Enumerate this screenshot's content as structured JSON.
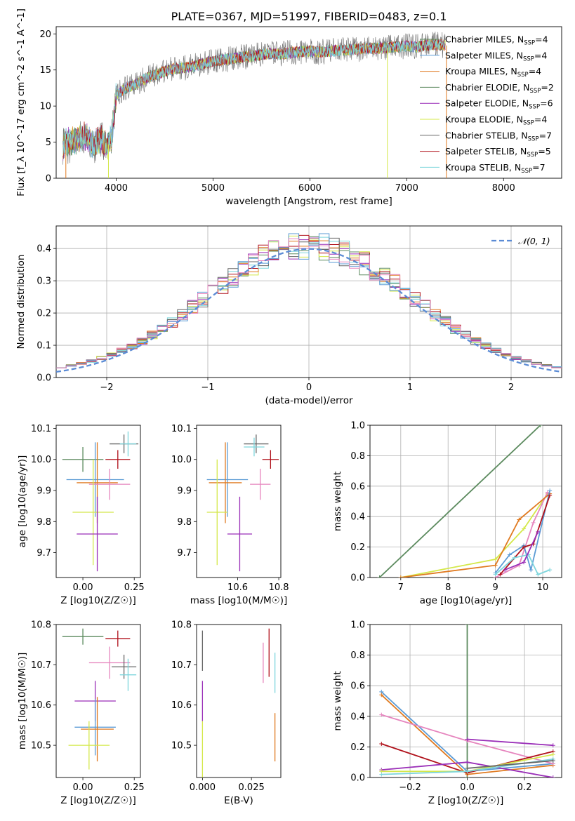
{
  "figure_title": "PLATE=0367, MJD=51997, FIBERID=0483, z=0.1",
  "model_colors": [
    "#5b8a5e",
    "#9a2fb8",
    "#d4e84a",
    "#666666",
    "#b0101a",
    "#7dd5dc",
    "#e0e020",
    "#5b9bd5",
    "#e07a20",
    "#e685be"
  ],
  "chart_data": [
    {
      "id": "spectrum",
      "type": "line",
      "title": "PLATE=0367, MJD=51997, FIBERID=0483, z=0.1",
      "xlabel": "wavelength [Angstrom, rest frame]",
      "ylabel": "Flux [f_λ 10^-17 erg cm^-2 s^-1 A^-1]",
      "xlim": [
        3380,
        8600
      ],
      "ylim": [
        0,
        21
      ],
      "xticks": [
        4000,
        5000,
        6000,
        7000,
        8000
      ],
      "yticks": [
        0,
        5,
        10,
        15,
        20
      ],
      "grid": false,
      "legend_position": "top-right",
      "x": [
        3450,
        3500,
        3550,
        3600,
        3650,
        3700,
        3750,
        3800,
        3850,
        3900,
        3950,
        4000,
        4100,
        4200,
        4300,
        4400,
        4500,
        4600,
        4700,
        4800,
        4900,
        5000,
        5100,
        5200,
        5300,
        5400,
        5500,
        5600,
        5700,
        5800,
        5900,
        6000,
        6100,
        6200,
        6300,
        6400,
        6500,
        6600,
        6700,
        6800,
        6900,
        7000,
        7100,
        7200,
        7300,
        7400
      ],
      "y_model": [
        4.5,
        5.0,
        5.2,
        5.5,
        5.6,
        5.8,
        4.5,
        5.0,
        5.3,
        4.2,
        5.4,
        11.5,
        12.5,
        13.0,
        13.8,
        14.3,
        14.8,
        15.2,
        15.3,
        15.5,
        15.9,
        16.2,
        16.4,
        16.6,
        16.8,
        16.9,
        17.1,
        17.3,
        17.2,
        17.4,
        17.5,
        17.6,
        17.5,
        17.6,
        17.7,
        17.8,
        17.9,
        18.0,
        18.0,
        18.1,
        18.2,
        18.3,
        18.2,
        18.4,
        18.5,
        18.4
      ],
      "series": [
        {
          "name": "Chabrier MILES, N_SSP=4",
          "nssp": "4"
        },
        {
          "name": "Salpeter MILES, N_SSP=4",
          "nssp": "4"
        },
        {
          "name": "Kroupa MILES, N_SSP=4",
          "nssp": "4"
        },
        {
          "name": "Chabrier ELODIE, N_SSP=2",
          "nssp": "2"
        },
        {
          "name": "Salpeter ELODIE, N_SSP=6",
          "nssp": "6"
        },
        {
          "name": "Kroupa ELODIE, N_SSP=4",
          "nssp": "4"
        },
        {
          "name": "Chabrier STELIB, N_SSP=7",
          "nssp": "7"
        },
        {
          "name": "Salpeter STELIB, N_SSP=5",
          "nssp": "5"
        },
        {
          "name": "Kroupa STELIB, N_SSP=7",
          "nssp": "7"
        }
      ],
      "legend_labels": [
        {
          "pre": "Chabrier MILES, N",
          "sub": "SSP",
          "post": "=4"
        },
        {
          "pre": "Salpeter MILES, N",
          "sub": "SSP",
          "post": "=4"
        },
        {
          "pre": "Kroupa MILES, N",
          "sub": "SSP",
          "post": "=4"
        },
        {
          "pre": "Chabrier ELODIE, N",
          "sub": "SSP",
          "post": "=2"
        },
        {
          "pre": "Salpeter ELODIE, N",
          "sub": "SSP",
          "post": "=6"
        },
        {
          "pre": "Kroupa ELODIE, N",
          "sub": "SSP",
          "post": "=4"
        },
        {
          "pre": "Chabrier STELIB, N",
          "sub": "SSP",
          "post": "=7"
        },
        {
          "pre": "Salpeter STELIB, N",
          "sub": "SSP",
          "post": "=5"
        },
        {
          "pre": "Kroupa STELIB, N",
          "sub": "SSP",
          "post": "=7"
        }
      ],
      "legend_colors": [
        "#5b8a5e",
        "#5b9bd5",
        "#e07a20",
        "#5b8a5e",
        "#9a2fb8",
        "#d4e84a",
        "#666666",
        "#b0101a",
        "#7dd5dc"
      ]
    },
    {
      "id": "residuals",
      "type": "line",
      "xlabel": "(data-model)/error",
      "ylabel": "Normed distribution",
      "xlim": [
        -2.5,
        2.5
      ],
      "ylim": [
        0,
        0.47
      ],
      "xticks": [
        -2,
        -1,
        0,
        1,
        2
      ],
      "yticks": [
        0.0,
        0.1,
        0.2,
        0.3,
        0.4
      ],
      "grid": true,
      "legend_position": "top-right",
      "reference_curve": {
        "name": "N(0,1)",
        "label": "𝒩(0, 1)",
        "mean": 0,
        "sigma": 1
      },
      "bin_width": 0.1
    },
    {
      "id": "age-vs-metallicity",
      "type": "scatter",
      "xlabel": "Z [log10(Z/Z☉)]",
      "ylabel": "age  [log10(age/yr)]",
      "xlim": [
        -0.13,
        0.28
      ],
      "ylim": [
        9.62,
        10.11
      ],
      "xticks": [
        0.0,
        0.25
      ],
      "yticks": [
        9.7,
        9.8,
        9.9,
        10.0,
        10.1
      ],
      "grid": false,
      "points": [
        {
          "x": 0.0,
          "xerr": 0.1,
          "y": 10.0,
          "yerr": 0.04
        },
        {
          "x": 0.06,
          "xerr": 0.14,
          "y": 9.935,
          "yerr": 0.12
        },
        {
          "x": 0.07,
          "xerr": 0.1,
          "y": 9.925,
          "yerr": 0.13
        },
        {
          "x": 0.13,
          "xerr": 0.1,
          "y": 9.92,
          "yerr": 0.05
        },
        {
          "x": 0.17,
          "xerr": 0.06,
          "y": 10.0,
          "yerr": 0.03
        },
        {
          "x": 0.2,
          "xerr": 0.07,
          "y": 10.05,
          "yerr": 0.03
        },
        {
          "x": 0.22,
          "xerr": 0.04,
          "y": 10.05,
          "yerr": 0.04
        },
        {
          "x": 0.05,
          "xerr": 0.1,
          "y": 9.83,
          "yerr": 0.17
        },
        {
          "x": 0.07,
          "xerr": 0.1,
          "y": 9.76,
          "yerr": 0.12
        }
      ]
    },
    {
      "id": "age-vs-mass",
      "type": "scatter",
      "xlabel": "mass [log10(M/M☉)]",
      "ylabel": "",
      "xlim": [
        10.4,
        10.81
      ],
      "ylim": [
        9.62,
        10.11
      ],
      "xticks": [
        10.6,
        10.8
      ],
      "yticks": [
        9.7,
        9.8,
        9.9,
        10.0,
        10.1
      ],
      "grid": false,
      "points": [
        {
          "x": 10.55,
          "xerr": 0.1,
          "y": 9.935,
          "yerr": 0.12
        },
        {
          "x": 10.54,
          "xerr": 0.08,
          "y": 9.925,
          "yerr": 0.13
        },
        {
          "x": 10.71,
          "xerr": 0.05,
          "y": 9.92,
          "yerr": 0.05
        },
        {
          "x": 10.76,
          "xerr": 0.04,
          "y": 10.0,
          "yerr": 0.03
        },
        {
          "x": 10.69,
          "xerr": 0.06,
          "y": 10.05,
          "yerr": 0.03
        },
        {
          "x": 10.68,
          "xerr": 0.05,
          "y": 10.04,
          "yerr": 0.03
        },
        {
          "x": 10.5,
          "xerr": 0.05,
          "y": 9.83,
          "yerr": 0.17
        },
        {
          "x": 10.61,
          "xerr": 0.06,
          "y": 9.76,
          "yerr": 0.12
        }
      ]
    },
    {
      "id": "mass-weight-vs-age",
      "type": "line",
      "xlabel": "age  [log10(age/yr)]",
      "ylabel": "mass weight",
      "xlim": [
        6.35,
        10.4
      ],
      "ylim": [
        0,
        1.0
      ],
      "xticks": [
        7,
        8,
        9,
        10
      ],
      "yticks": [
        0.0,
        0.2,
        0.4,
        0.6,
        0.8,
        1.0
      ],
      "grid": true,
      "series": [
        {
          "x": [
            6.55,
            9.95
          ],
          "y": [
            0.0,
            1.0
          ]
        },
        {
          "x": [
            7.0,
            9.0,
            9.6,
            10.1
          ],
          "y": [
            0.0,
            0.12,
            0.32,
            0.55
          ]
        },
        {
          "x": [
            9.0,
            9.5,
            9.8,
            10.1
          ],
          "y": [
            0.0,
            0.08,
            0.36,
            0.56
          ]
        },
        {
          "x": [
            7.0,
            9.0,
            9.5,
            10.15
          ],
          "y": [
            0.0,
            0.08,
            0.38,
            0.55
          ]
        },
        {
          "x": [
            9.0,
            9.3,
            9.6,
            9.75,
            10.15
          ],
          "y": [
            0.03,
            0.15,
            0.21,
            0.05,
            0.57
          ]
        },
        {
          "x": [
            9.1,
            9.6,
            9.8,
            10.15
          ],
          "y": [
            0.02,
            0.2,
            0.22,
            0.54
          ]
        },
        {
          "x": [
            9.0,
            9.4,
            9.7,
            9.9,
            10.15
          ],
          "y": [
            0.02,
            0.13,
            0.15,
            0.02,
            0.05
          ]
        },
        {
          "x": [
            9.2,
            9.6,
            9.9
          ],
          "y": [
            0.05,
            0.1,
            0.3
          ]
        }
      ]
    },
    {
      "id": "mass-vs-metallicity",
      "type": "scatter",
      "xlabel": "Z [log10(Z/Z☉)]",
      "ylabel": "mass [log10(M/M☉)]",
      "xlim": [
        -0.13,
        0.28
      ],
      "ylim": [
        10.42,
        10.8
      ],
      "xticks": [
        0.0,
        0.25
      ],
      "yticks": [
        10.5,
        10.6,
        10.7,
        10.8
      ],
      "grid": false,
      "points": [
        {
          "x": 0.0,
          "xerr": 0.1,
          "y": 10.77,
          "yerr": 0.02
        },
        {
          "x": 0.06,
          "xerr": 0.1,
          "y": 10.61,
          "yerr": 0.05
        },
        {
          "x": 0.06,
          "xerr": 0.1,
          "y": 10.545,
          "yerr": 0.07
        },
        {
          "x": 0.07,
          "xerr": 0.08,
          "y": 10.54,
          "yerr": 0.08
        },
        {
          "x": 0.13,
          "xerr": 0.1,
          "y": 10.705,
          "yerr": 0.04
        },
        {
          "x": 0.17,
          "xerr": 0.06,
          "y": 10.765,
          "yerr": 0.02
        },
        {
          "x": 0.2,
          "xerr": 0.06,
          "y": 10.695,
          "yerr": 0.03
        },
        {
          "x": 0.22,
          "xerr": 0.04,
          "y": 10.675,
          "yerr": 0.04
        },
        {
          "x": 0.03,
          "xerr": 0.1,
          "y": 10.5,
          "yerr": 0.06
        }
      ]
    },
    {
      "id": "mass-vs-reddening",
      "type": "scatter",
      "xlabel": "E(B-V)",
      "ylabel": "",
      "xlim": [
        -0.003,
        0.04
      ],
      "ylim": [
        10.42,
        10.8
      ],
      "xticks": [
        0.0,
        0.025
      ],
      "yticks": [
        10.5,
        10.6,
        10.7,
        10.8
      ],
      "grid": false,
      "points": [
        {
          "x": 0.0,
          "xerr": 0,
          "y": 10.735,
          "yerr": 0.05
        },
        {
          "x": 0.0,
          "xerr": 0,
          "y": 10.61,
          "yerr": 0.05
        },
        {
          "x": 0.0,
          "xerr": 0,
          "y": 10.49,
          "yerr": 0.07
        },
        {
          "x": 0.031,
          "xerr": 0,
          "y": 10.705,
          "yerr": 0.05
        },
        {
          "x": 0.034,
          "xerr": 0,
          "y": 10.73,
          "yerr": 0.06
        },
        {
          "x": 0.037,
          "xerr": 0,
          "y": 10.68,
          "yerr": 0.05
        },
        {
          "x": 0.037,
          "xerr": 0,
          "y": 10.52,
          "yerr": 0.06
        }
      ]
    },
    {
      "id": "mass-weight-vs-metallicity",
      "type": "line",
      "xlabel": "Z [log10(Z/Z☉)]",
      "ylabel": "mass weight",
      "xlim": [
        -0.34,
        0.33
      ],
      "ylim": [
        0,
        1.0
      ],
      "xticks": [
        -0.2,
        0.0,
        0.2
      ],
      "yticks": [
        0.0,
        0.2,
        0.4,
        0.6,
        0.8,
        1.0
      ],
      "grid": true,
      "series": [
        {
          "x": [
            0.0,
            0.0
          ],
          "y": [
            0.0,
            1.0
          ]
        },
        {
          "x": [
            -0.3,
            0.0,
            0.3
          ],
          "y": [
            0.56,
            0.04,
            0.09
          ]
        },
        {
          "x": [
            -0.3,
            0.0,
            0.3
          ],
          "y": [
            0.54,
            0.02,
            0.08
          ]
        },
        {
          "x": [
            -0.3,
            0.0,
            0.3
          ],
          "y": [
            0.41,
            0.24,
            0.09
          ]
        },
        {
          "x": [
            -0.3,
            0.0,
            0.3
          ],
          "y": [
            0.22,
            0.03,
            0.17
          ]
        },
        {
          "x": [
            -0.3,
            0.0,
            0.3
          ],
          "y": [
            0.05,
            0.1,
            0.0
          ]
        },
        {
          "x": [
            0.0,
            0.3
          ],
          "y": [
            0.25,
            0.21
          ]
        },
        {
          "x": [
            -0.3,
            0.0,
            0.3
          ],
          "y": [
            0.04,
            0.04,
            0.15
          ]
        },
        {
          "x": [
            -0.3,
            0.0,
            0.3
          ],
          "y": [
            0.02,
            0.04,
            0.12
          ]
        },
        {
          "x": [
            0.0,
            0.3
          ],
          "y": [
            0.06,
            0.11
          ]
        }
      ]
    }
  ]
}
